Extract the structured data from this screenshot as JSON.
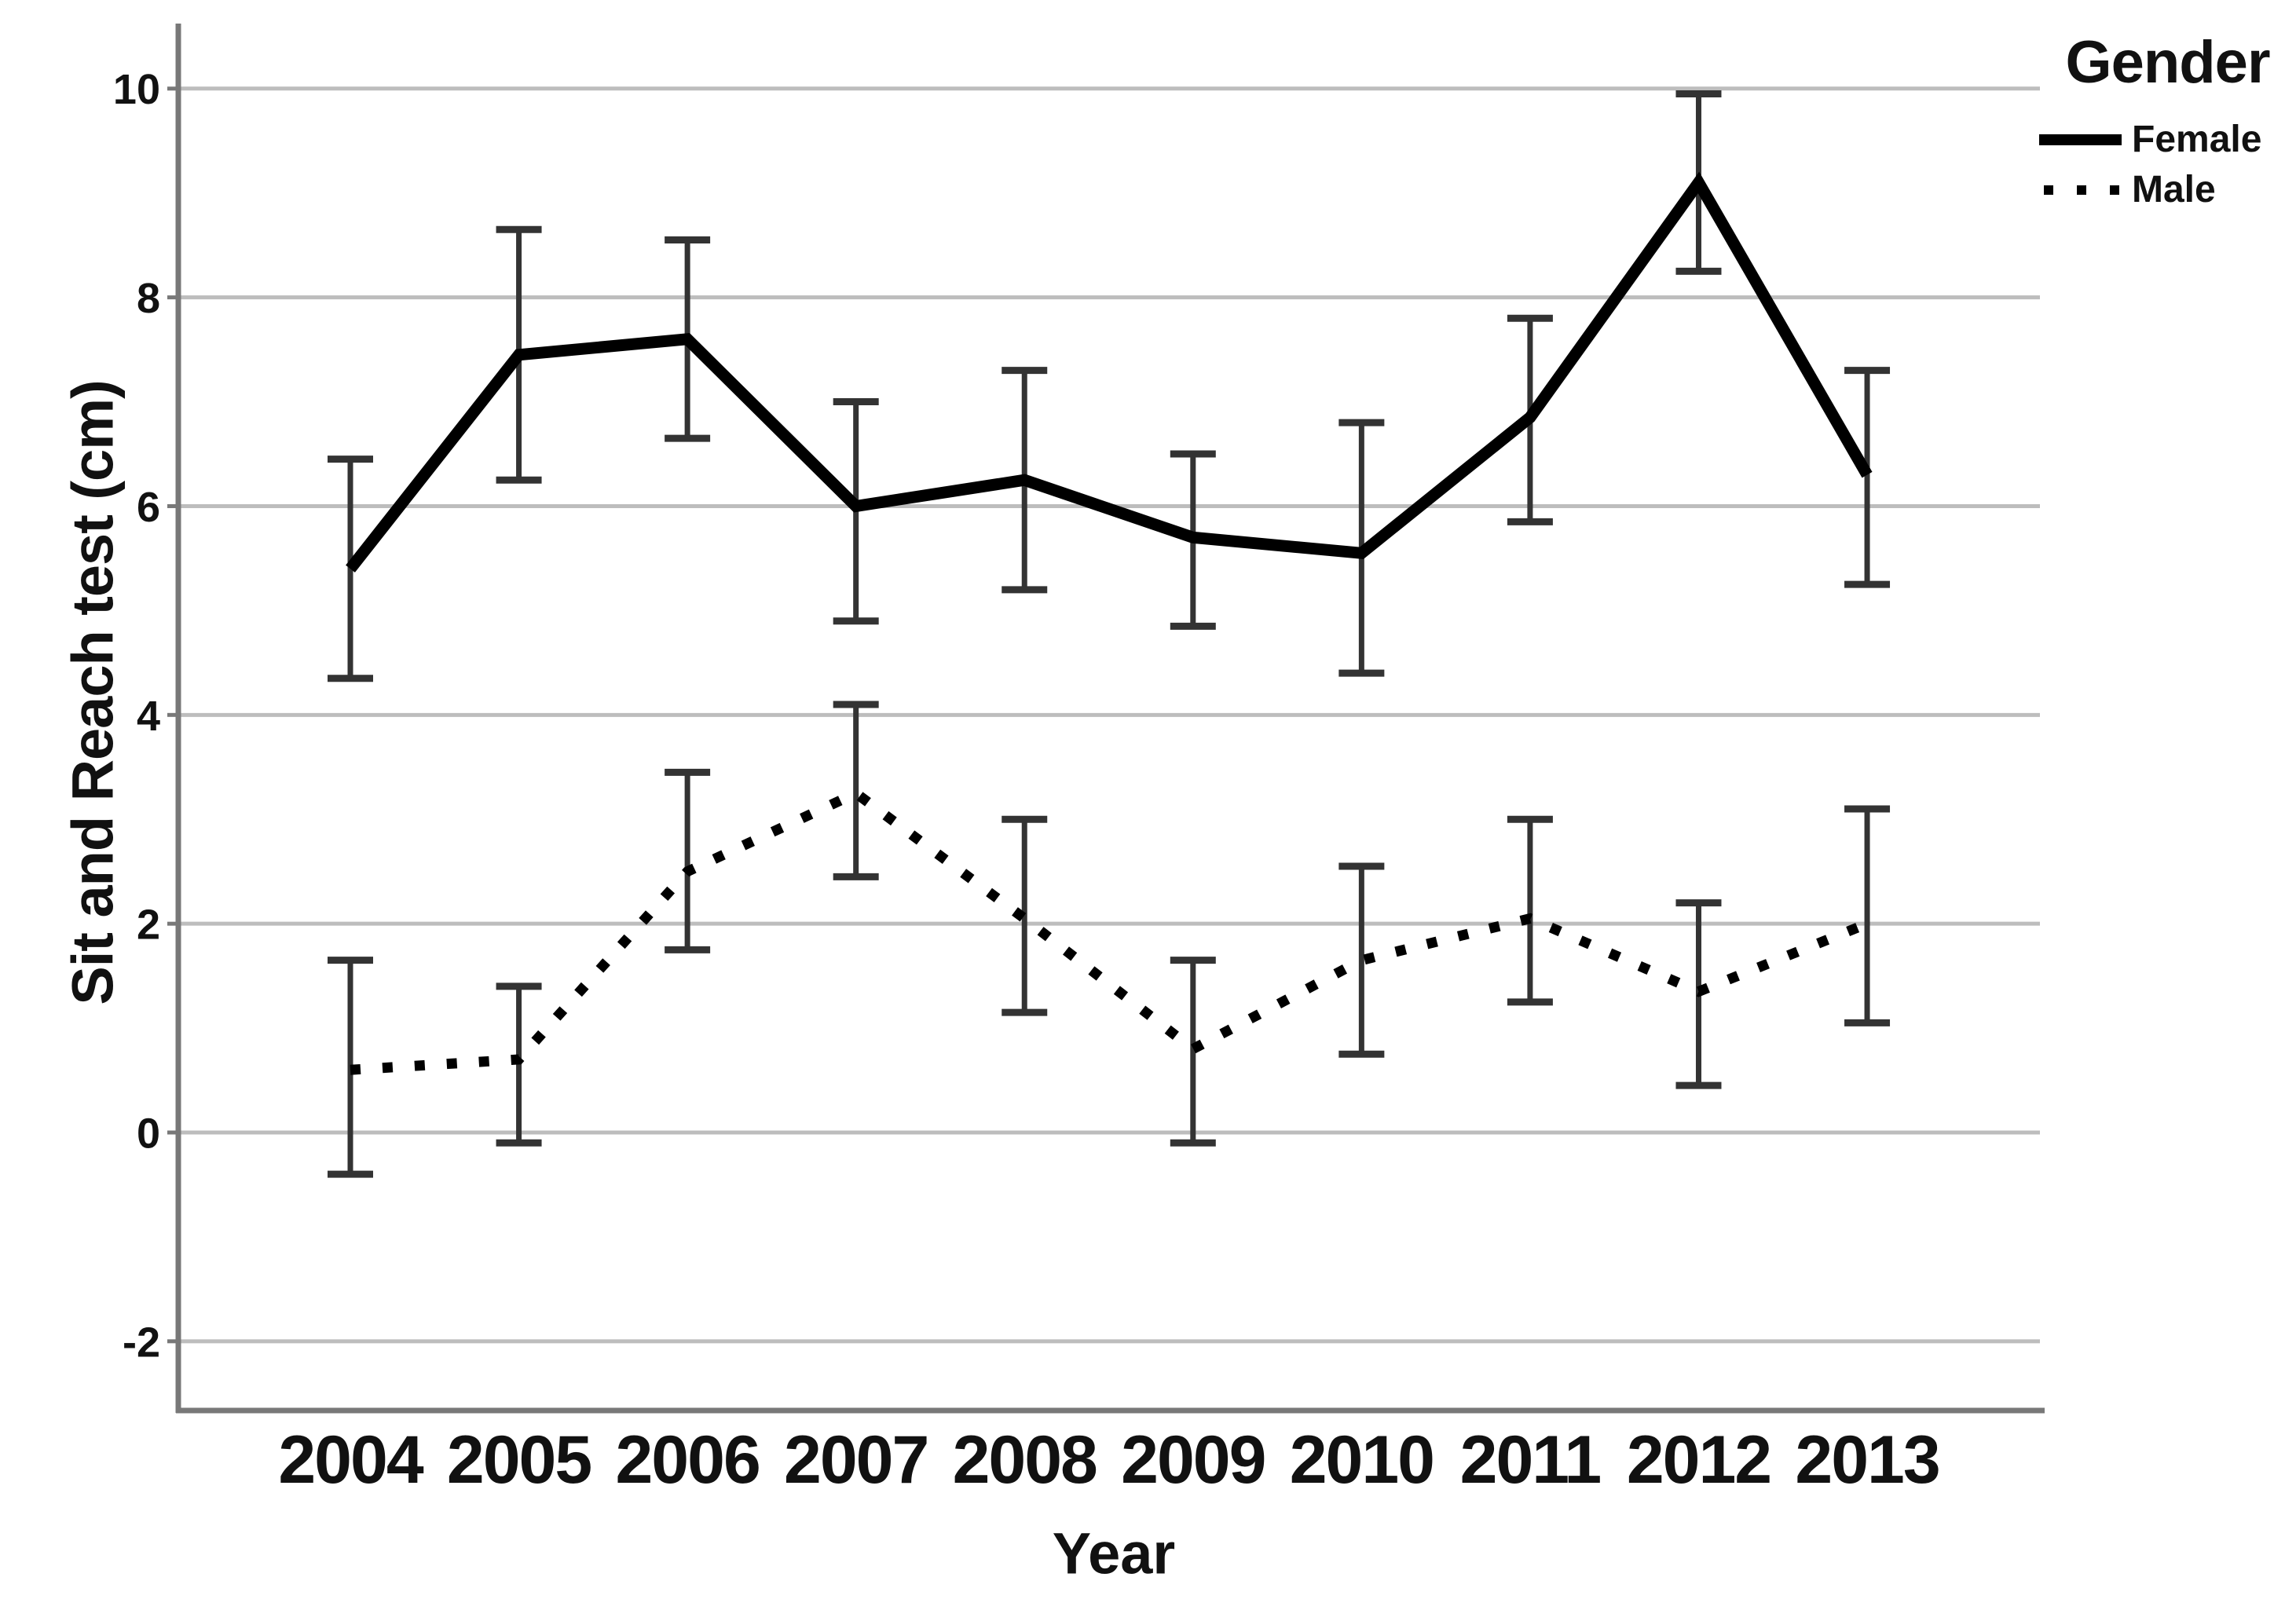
{
  "chart_data": {
    "type": "line",
    "title": "",
    "xlabel": "Year",
    "ylabel": "Sit and Reach test (cm)",
    "legend_title": "Gender",
    "legend_position": "top-right-outside",
    "grid": true,
    "categories": [
      "2004",
      "2005",
      "2006",
      "2007",
      "2008",
      "2009",
      "2010",
      "2011",
      "2012",
      "2013"
    ],
    "yticks": [
      -2,
      0,
      2,
      4,
      6,
      8,
      10
    ],
    "ylim": [
      -2.65,
      10.6
    ],
    "error_bars": true,
    "series": [
      {
        "name": "Female",
        "line_style": "solid",
        "values": [
          5.4,
          7.45,
          7.6,
          6.0,
          6.25,
          5.7,
          5.55,
          6.85,
          9.1,
          6.3
        ],
        "ci_low": [
          4.35,
          6.25,
          6.65,
          4.9,
          5.2,
          4.85,
          4.4,
          5.85,
          8.25,
          5.25
        ],
        "ci_high": [
          6.45,
          8.65,
          8.55,
          7.0,
          7.3,
          6.5,
          6.8,
          7.8,
          9.95,
          7.3
        ]
      },
      {
        "name": "Male",
        "line_style": "dotted",
        "values": [
          0.6,
          0.7,
          2.5,
          3.25,
          2.05,
          0.8,
          1.65,
          2.05,
          1.35,
          2.0
        ],
        "ci_low": [
          -0.4,
          -0.1,
          1.75,
          2.45,
          1.15,
          -0.1,
          0.75,
          1.25,
          0.45,
          1.05
        ],
        "ci_high": [
          1.65,
          1.4,
          3.45,
          4.1,
          3.0,
          1.65,
          2.55,
          3.0,
          2.2,
          3.1
        ]
      }
    ],
    "colors": {
      "line": "#000000",
      "error_bar": "#333333",
      "grid": "#bdbdbd",
      "axis": "#787878",
      "text": "#111111"
    }
  }
}
